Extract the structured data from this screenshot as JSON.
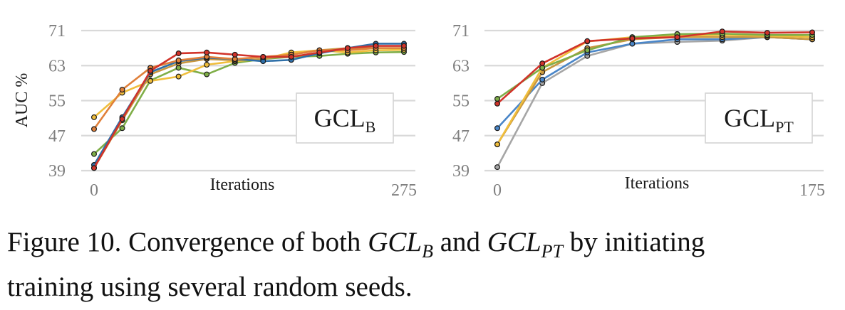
{
  "chart_data": [
    {
      "type": "line",
      "box_label": "GCL",
      "box_label_sub": "B",
      "ylabel": "AUC %",
      "xlabel": "Iterations",
      "ylim": [
        39,
        71
      ],
      "yticks": [
        "39",
        "47",
        "55",
        "63",
        "71"
      ],
      "xlim": [
        0,
        275
      ],
      "xticks": [
        "0",
        "275"
      ],
      "x": [
        0,
        25,
        50,
        75,
        100,
        125,
        150,
        175,
        200,
        225,
        250,
        275
      ],
      "grid": true,
      "series": [
        {
          "color": "#7fae48",
          "values": [
            42.8,
            48.7,
            59.6,
            62.5,
            61.0,
            63.6,
            64.5,
            65.0,
            65.2,
            65.7,
            66.0,
            66.1
          ]
        },
        {
          "color": "#f0be3c",
          "values": [
            51.2,
            56.8,
            59.5,
            60.5,
            63.2,
            64.0,
            64.5,
            66.0,
            66.5,
            66.0,
            66.5,
            66.6
          ]
        },
        {
          "color": "#c8973f",
          "values": [
            39.6,
            50.5,
            61.0,
            63.5,
            64.5,
            64.2,
            64.5,
            65.5,
            66.5,
            67.0,
            67.0,
            67.0
          ]
        },
        {
          "color": "#2e6fa8",
          "values": [
            40.3,
            51.2,
            61.5,
            64.0,
            64.8,
            64.5,
            64.0,
            64.3,
            65.8,
            67.0,
            68.0,
            68.0
          ]
        },
        {
          "color": "#e0803a",
          "values": [
            48.5,
            57.5,
            62.5,
            64.2,
            65.0,
            64.5,
            65.0,
            65.5,
            66.5,
            66.5,
            67.0,
            67.0
          ]
        },
        {
          "color": "#d1332a",
          "values": [
            39.6,
            50.8,
            61.8,
            65.8,
            66.0,
            65.5,
            65.0,
            65.0,
            66.0,
            67.0,
            67.5,
            67.5
          ]
        }
      ]
    },
    {
      "type": "line",
      "box_label": "GCL",
      "box_label_sub": "PT",
      "ylabel": "",
      "xlabel": "Iterations",
      "ylim": [
        39,
        71
      ],
      "yticks": [
        "39",
        "47",
        "55",
        "63",
        "71"
      ],
      "xlim": [
        0,
        175
      ],
      "xticks": [
        "0",
        "175"
      ],
      "x": [
        0,
        25,
        50,
        75,
        100,
        125,
        150,
        175
      ],
      "grid": true,
      "series": [
        {
          "color": "#a6a6a6",
          "values": [
            39.8,
            59.0,
            65.2,
            68.0,
            68.4,
            68.7,
            69.5,
            69.0
          ]
        },
        {
          "color": "#4a86c8",
          "values": [
            48.7,
            59.8,
            66.0,
            68.0,
            69.0,
            69.0,
            69.5,
            69.0
          ]
        },
        {
          "color": "#c8973f",
          "values": [
            45.0,
            61.5,
            67.0,
            69.0,
            69.5,
            69.5,
            69.5,
            69.0
          ]
        },
        {
          "color": "#f0be3c",
          "values": [
            45.0,
            62.5,
            68.5,
            69.5,
            69.8,
            70.0,
            69.8,
            69.5
          ]
        },
        {
          "color": "#7fae48",
          "values": [
            55.4,
            62.5,
            66.5,
            69.5,
            70.2,
            70.3,
            70.0,
            70.0
          ]
        },
        {
          "color": "#d1332a",
          "values": [
            54.3,
            63.5,
            68.6,
            69.2,
            69.5,
            70.8,
            70.5,
            70.6
          ]
        }
      ]
    }
  ],
  "caption": {
    "prefix": "Figure 10. Convergence of both ",
    "m1": "GCL",
    "m1_sub": "B",
    "mid": " and ",
    "m2": "GCL",
    "m2_sub": "PT",
    "suffix_line1": " by initiating",
    "line2": "training using several random seeds."
  }
}
